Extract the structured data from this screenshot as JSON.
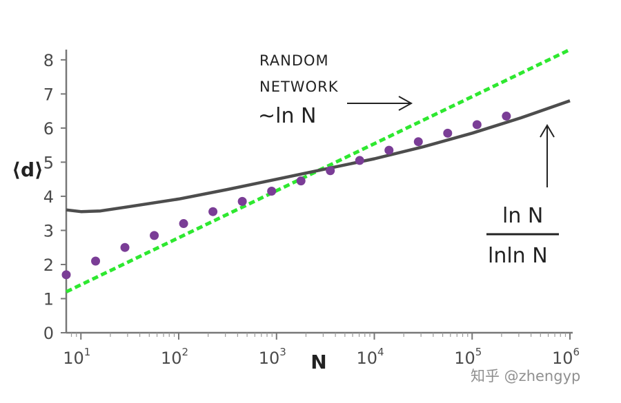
{
  "chart_data": {
    "type": "line",
    "xscale": "log",
    "xlim_log10": [
      0.85,
      6.0
    ],
    "ylim": [
      0,
      8.3
    ],
    "ylabel": "⟨d⟩",
    "xlabel": "N",
    "yticks": [
      "0",
      "1",
      "2",
      "3",
      "4",
      "5",
      "6",
      "7",
      "8"
    ],
    "xticks": [
      {
        "base": "10",
        "exp": "1"
      },
      {
        "base": "10",
        "exp": "2"
      },
      {
        "base": "10",
        "exp": "3"
      },
      {
        "base": "10",
        "exp": "4"
      },
      {
        "base": "10",
        "exp": "5"
      },
      {
        "base": "10",
        "exp": "6"
      }
    ],
    "series": [
      {
        "name": "random network ~ln N",
        "style": "dashed",
        "color": "#2ee830",
        "log10_x": [
          0.85,
          6.0
        ],
        "y": [
          1.2,
          8.3
        ]
      },
      {
        "name": "ln N / lnln N",
        "style": "solid",
        "color": "#4d4d4d",
        "log10_x": [
          0.85,
          1.0,
          1.2,
          1.5,
          2.0,
          2.5,
          3.0,
          3.5,
          4.0,
          4.5,
          5.0,
          5.5,
          6.0
        ],
        "y": [
          3.6,
          3.55,
          3.57,
          3.7,
          3.92,
          4.2,
          4.5,
          4.8,
          5.1,
          5.45,
          5.85,
          6.3,
          6.8
        ]
      },
      {
        "name": "data",
        "style": "markers",
        "color": "#7a3d96",
        "log10_x": [
          0.85,
          1.15,
          1.45,
          1.75,
          2.05,
          2.35,
          2.65,
          2.95,
          3.25,
          3.55,
          3.85,
          4.15,
          4.45,
          4.75,
          5.05,
          5.35
        ],
        "y": [
          1.7,
          2.1,
          2.5,
          2.85,
          3.2,
          3.55,
          3.85,
          4.15,
          4.45,
          4.75,
          5.05,
          5.35,
          5.6,
          5.85,
          6.1,
          6.35
        ]
      }
    ],
    "annotations": {
      "random_line1": "RANDOM",
      "random_line2": "NETWORK",
      "random_formula": "~ln N",
      "ratio_numerator": "ln N",
      "ratio_denominator": "lnln N"
    }
  },
  "watermark": "知乎 @zhengyp"
}
